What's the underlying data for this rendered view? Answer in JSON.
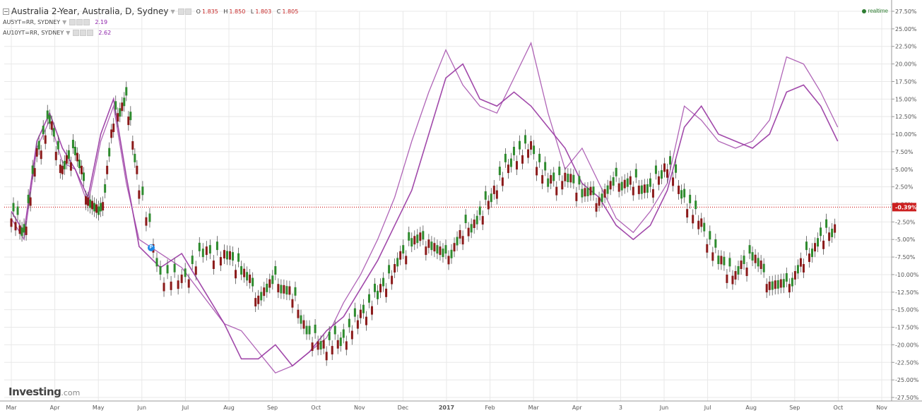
{
  "legend": {
    "main_title": "Australia 2-Year, Australia, D, Sydney",
    "ohlc": {
      "o_label": "O",
      "o_value": "1.835",
      "h_label": "H",
      "h_value": "1.850",
      "l_label": "L",
      "l_value": "1.803",
      "c_label": "C",
      "c_value": "1.805"
    },
    "series_1_label": "AU5YT=RR, SYDNEY",
    "series_1_value": "2.19",
    "series_2_label": "AU10YT=RR, SYDNEY",
    "series_2_value": "2.62"
  },
  "status": {
    "realtime_label": "realtime"
  },
  "brand": {
    "name": "Investing",
    "suffix": ".com"
  },
  "marker": {
    "label": "P"
  },
  "colors": {
    "up": "#2e8b2e",
    "down": "#8b1a1a",
    "compare_line": "#9c3fa5",
    "zero_line": "#cc0000",
    "grid": "#e8e8e8",
    "axis_text": "#555555"
  },
  "chart_data": {
    "type": "line",
    "title": "Australia 2-Year, Australia, D, Sydney",
    "x_ticks": [
      "Mar",
      "Apr",
      "May",
      "Jun",
      "Jul",
      "Aug",
      "Sep",
      "Oct",
      "Nov",
      "Dec",
      "2017",
      "Feb",
      "Mar",
      "Apr",
      "3",
      "Jun",
      "Jul",
      "Aug",
      "Sep",
      "Oct",
      "Nov"
    ],
    "y_ticks": [
      "27.50%",
      "25.00%",
      "22.50%",
      "20.00%",
      "17.50%",
      "15.00%",
      "12.50%",
      "10.00%",
      "7.50%",
      "5.00%",
      "2.50%",
      "0.00%",
      "-2.50%",
      "-5.00%",
      "-7.50%",
      "-10.00%",
      "-12.50%",
      "-15.00%",
      "-17.50%",
      "-20.00%",
      "-22.50%",
      "-25.00%",
      "-27.50%"
    ],
    "ylim": [
      -27.5,
      27.5
    ],
    "current_marker": "-0.39%",
    "current_value": -0.39,
    "grid": true,
    "x_range": [
      0,
      20.5
    ],
    "series": [
      {
        "name": "Australia 2-Year",
        "style": "candlestick",
        "values": [
          [
            0,
            -1
          ],
          [
            0.3,
            -4
          ],
          [
            0.6,
            7
          ],
          [
            0.9,
            12
          ],
          [
            1.2,
            5
          ],
          [
            1.5,
            8
          ],
          [
            1.8,
            1
          ],
          [
            2.1,
            -2
          ],
          [
            2.4,
            12
          ],
          [
            2.7,
            15
          ],
          [
            3,
            3
          ],
          [
            3.5,
            -10
          ],
          [
            4,
            -11
          ],
          [
            4.5,
            -7
          ],
          [
            5,
            -7
          ],
          [
            5.4,
            -9
          ],
          [
            5.8,
            -13
          ],
          [
            6.2,
            -11
          ],
          [
            6.6,
            -13
          ],
          [
            7,
            -19
          ],
          [
            7.4,
            -20
          ],
          [
            7.8,
            -19
          ],
          [
            8.2,
            -16
          ],
          [
            8.6,
            -13
          ],
          [
            9,
            -9
          ],
          [
            9.4,
            -5
          ],
          [
            9.8,
            -5
          ],
          [
            10.2,
            -8
          ],
          [
            10.6,
            -4
          ],
          [
            11,
            -2
          ],
          [
            11.4,
            3
          ],
          [
            11.8,
            7
          ],
          [
            12.2,
            8
          ],
          [
            12.6,
            3
          ],
          [
            13,
            4
          ],
          [
            13.4,
            2
          ],
          [
            13.8,
            1
          ],
          [
            14.2,
            3
          ],
          [
            14.6,
            3
          ],
          [
            15,
            2
          ],
          [
            15.4,
            6
          ],
          [
            15.8,
            1
          ],
          [
            16.2,
            -3
          ],
          [
            16.6,
            -8
          ],
          [
            17,
            -10
          ],
          [
            17.4,
            -7
          ],
          [
            17.8,
            -11
          ],
          [
            18.2,
            -12
          ],
          [
            18.6,
            -8
          ],
          [
            19,
            -5
          ],
          [
            19.4,
            -3
          ]
        ]
      },
      {
        "name": "AU5YT=RR, SYDNEY",
        "values": [
          [
            0,
            -1
          ],
          [
            0.3,
            -4
          ],
          [
            0.6,
            9
          ],
          [
            0.9,
            13
          ],
          [
            1.2,
            8
          ],
          [
            1.5,
            5
          ],
          [
            1.8,
            1
          ],
          [
            2.1,
            10
          ],
          [
            2.4,
            15
          ],
          [
            2.7,
            4
          ],
          [
            3,
            -6
          ],
          [
            3.5,
            -9
          ],
          [
            4,
            -7
          ],
          [
            4.5,
            -12
          ],
          [
            5,
            -17
          ],
          [
            5.4,
            -22
          ],
          [
            5.8,
            -22
          ],
          [
            6.2,
            -20
          ],
          [
            6.6,
            -23
          ],
          [
            7,
            -21
          ],
          [
            7.4,
            -18
          ],
          [
            7.8,
            -16
          ],
          [
            8.2,
            -12
          ],
          [
            8.6,
            -8
          ],
          [
            9,
            -3
          ],
          [
            9.4,
            2
          ],
          [
            9.8,
            10
          ],
          [
            10.2,
            18
          ],
          [
            10.6,
            20
          ],
          [
            11,
            15
          ],
          [
            11.4,
            14
          ],
          [
            11.8,
            16
          ],
          [
            12.2,
            14
          ],
          [
            12.6,
            11
          ],
          [
            13,
            8
          ],
          [
            13.4,
            3
          ],
          [
            13.8,
            1
          ],
          [
            14.2,
            -3
          ],
          [
            14.6,
            -5
          ],
          [
            15,
            -3
          ],
          [
            15.4,
            2
          ],
          [
            15.8,
            11
          ],
          [
            16.2,
            14
          ],
          [
            16.6,
            10
          ],
          [
            17,
            9
          ],
          [
            17.4,
            8
          ],
          [
            17.8,
            10
          ],
          [
            18.2,
            16
          ],
          [
            18.6,
            17
          ],
          [
            19,
            14
          ],
          [
            19.4,
            9
          ]
        ]
      },
      {
        "name": "AU10YT=RR, SYDNEY",
        "values": [
          [
            0,
            -2
          ],
          [
            0.3,
            -5
          ],
          [
            0.6,
            8
          ],
          [
            0.9,
            12
          ],
          [
            1.2,
            6
          ],
          [
            1.5,
            5
          ],
          [
            1.8,
            0
          ],
          [
            2.1,
            9
          ],
          [
            2.4,
            14
          ],
          [
            2.7,
            3
          ],
          [
            3,
            -5
          ],
          [
            3.5,
            -7
          ],
          [
            4,
            -9
          ],
          [
            4.5,
            -13
          ],
          [
            5,
            -17
          ],
          [
            5.4,
            -18
          ],
          [
            5.8,
            -21
          ],
          [
            6.2,
            -24
          ],
          [
            6.6,
            -23
          ],
          [
            7,
            -21
          ],
          [
            7.4,
            -19
          ],
          [
            7.8,
            -14
          ],
          [
            8.2,
            -10
          ],
          [
            8.6,
            -5
          ],
          [
            9,
            1
          ],
          [
            9.4,
            9
          ],
          [
            9.8,
            16
          ],
          [
            10.2,
            22
          ],
          [
            10.6,
            17
          ],
          [
            11,
            14
          ],
          [
            11.4,
            13
          ],
          [
            11.8,
            18
          ],
          [
            12.2,
            23
          ],
          [
            12.6,
            13
          ],
          [
            13,
            5
          ],
          [
            13.4,
            8
          ],
          [
            13.8,
            3
          ],
          [
            14.2,
            -2
          ],
          [
            14.6,
            -4
          ],
          [
            15,
            -1
          ],
          [
            15.4,
            3
          ],
          [
            15.8,
            14
          ],
          [
            16.2,
            12
          ],
          [
            16.6,
            9
          ],
          [
            17,
            8
          ],
          [
            17.4,
            9
          ],
          [
            17.8,
            12
          ],
          [
            18.2,
            21
          ],
          [
            18.6,
            20
          ],
          [
            19,
            16
          ],
          [
            19.4,
            11
          ]
        ]
      }
    ]
  }
}
